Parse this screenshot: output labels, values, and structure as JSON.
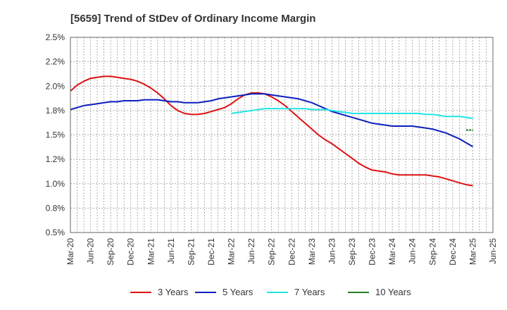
{
  "chart_data": {
    "type": "line",
    "title": "[5659]  Trend of StDev of Ordinary Income Margin",
    "xlabel": "",
    "ylabel": "",
    "x_ticks": [
      "Mar-20",
      "Jun-20",
      "Sep-20",
      "Dec-20",
      "Mar-21",
      "Jun-21",
      "Sep-21",
      "Dec-21",
      "Mar-22",
      "Jun-22",
      "Sep-22",
      "Dec-22",
      "Mar-23",
      "Jun-23",
      "Sep-23",
      "Dec-23",
      "Mar-24",
      "Jun-24",
      "Sep-24",
      "Dec-24",
      "Mar-25",
      "Jun-25"
    ],
    "y_ticks": [
      "0.5%",
      "0.8%",
      "1.0%",
      "1.2%",
      "1.5%",
      "1.8%",
      "2.0%",
      "2.2%",
      "2.5%"
    ],
    "ylim": [
      0.5,
      2.5
    ],
    "grid": true,
    "legend_position": "bottom",
    "series": [
      {
        "name": "3 Years",
        "color": "#dd1111",
        "x": [
          "Mar-20",
          "Apr-20",
          "May-20",
          "Jun-20",
          "Jul-20",
          "Aug-20",
          "Sep-20",
          "Oct-20",
          "Nov-20",
          "Dec-20",
          "Jan-21",
          "Feb-21",
          "Mar-21",
          "Apr-21",
          "May-21",
          "Jun-21",
          "Jul-21",
          "Aug-21",
          "Sep-21",
          "Oct-21",
          "Nov-21",
          "Dec-21",
          "Jan-22",
          "Feb-22",
          "Mar-22",
          "Apr-22",
          "May-22",
          "Jun-22",
          "Jul-22",
          "Aug-22",
          "Sep-22",
          "Oct-22",
          "Nov-22",
          "Dec-22",
          "Jan-23",
          "Feb-23",
          "Mar-23",
          "Apr-23",
          "May-23",
          "Jun-23",
          "Jul-23",
          "Aug-23",
          "Sep-23",
          "Oct-23",
          "Nov-23",
          "Dec-23",
          "Jan-24",
          "Feb-24",
          "Mar-24",
          "Apr-24",
          "May-24",
          "Jun-24",
          "Jul-24",
          "Aug-24",
          "Sep-24",
          "Oct-24",
          "Nov-24",
          "Dec-24",
          "Jan-25",
          "Feb-25",
          "Mar-25"
        ],
        "values": [
          1.95,
          2.01,
          2.05,
          2.08,
          2.09,
          2.1,
          2.1,
          2.09,
          2.08,
          2.07,
          2.05,
          2.02,
          1.98,
          1.93,
          1.87,
          1.8,
          1.75,
          1.72,
          1.71,
          1.71,
          1.72,
          1.74,
          1.76,
          1.78,
          1.82,
          1.87,
          1.91,
          1.93,
          1.93,
          1.92,
          1.89,
          1.85,
          1.8,
          1.74,
          1.68,
          1.62,
          1.56,
          1.5,
          1.45,
          1.41,
          1.36,
          1.31,
          1.26,
          1.21,
          1.17,
          1.14,
          1.13,
          1.12,
          1.1,
          1.09,
          1.09,
          1.09,
          1.09,
          1.09,
          1.08,
          1.07,
          1.05,
          1.03,
          1.01,
          0.99,
          0.98
        ]
      },
      {
        "name": "5 Years",
        "color": "#0a1fbf",
        "x": [
          "Mar-20",
          "Apr-20",
          "May-20",
          "Jun-20",
          "Jul-20",
          "Aug-20",
          "Sep-20",
          "Oct-20",
          "Nov-20",
          "Dec-20",
          "Jan-21",
          "Feb-21",
          "Mar-21",
          "Apr-21",
          "May-21",
          "Jun-21",
          "Jul-21",
          "Aug-21",
          "Sep-21",
          "Oct-21",
          "Nov-21",
          "Dec-21",
          "Jan-22",
          "Feb-22",
          "Mar-22",
          "Apr-22",
          "May-22",
          "Jun-22",
          "Jul-22",
          "Aug-22",
          "Sep-22",
          "Oct-22",
          "Nov-22",
          "Dec-22",
          "Jan-23",
          "Feb-23",
          "Mar-23",
          "Apr-23",
          "May-23",
          "Jun-23",
          "Jul-23",
          "Aug-23",
          "Sep-23",
          "Oct-23",
          "Nov-23",
          "Dec-23",
          "Jan-24",
          "Feb-24",
          "Mar-24",
          "Apr-24",
          "May-24",
          "Jun-24",
          "Jul-24",
          "Aug-24",
          "Sep-24",
          "Oct-24",
          "Nov-24",
          "Dec-24",
          "Jan-25",
          "Feb-25",
          "Mar-25"
        ],
        "values": [
          1.76,
          1.78,
          1.8,
          1.81,
          1.82,
          1.83,
          1.84,
          1.84,
          1.85,
          1.85,
          1.85,
          1.86,
          1.86,
          1.86,
          1.85,
          1.84,
          1.84,
          1.83,
          1.83,
          1.83,
          1.84,
          1.85,
          1.87,
          1.88,
          1.89,
          1.9,
          1.91,
          1.92,
          1.92,
          1.92,
          1.91,
          1.9,
          1.89,
          1.88,
          1.87,
          1.85,
          1.83,
          1.8,
          1.77,
          1.74,
          1.72,
          1.7,
          1.68,
          1.66,
          1.64,
          1.62,
          1.61,
          1.6,
          1.59,
          1.59,
          1.59,
          1.59,
          1.58,
          1.57,
          1.56,
          1.54,
          1.52,
          1.49,
          1.46,
          1.42,
          1.38
        ]
      },
      {
        "name": "7 Years",
        "color": "#22e5e5",
        "x": [
          "Mar-22",
          "Apr-22",
          "May-22",
          "Jun-22",
          "Jul-22",
          "Aug-22",
          "Sep-22",
          "Oct-22",
          "Nov-22",
          "Dec-22",
          "Jan-23",
          "Feb-23",
          "Mar-23",
          "Apr-23",
          "May-23",
          "Jun-23",
          "Jul-23",
          "Aug-23",
          "Sep-23",
          "Oct-23",
          "Nov-23",
          "Dec-23",
          "Jan-24",
          "Feb-24",
          "Mar-24",
          "Apr-24",
          "May-24",
          "Jun-24",
          "Jul-24",
          "Aug-24",
          "Sep-24",
          "Oct-24",
          "Nov-24",
          "Dec-24",
          "Jan-25",
          "Feb-25",
          "Mar-25"
        ],
        "values": [
          1.72,
          1.73,
          1.74,
          1.75,
          1.76,
          1.77,
          1.77,
          1.77,
          1.77,
          1.77,
          1.77,
          1.77,
          1.76,
          1.76,
          1.76,
          1.75,
          1.74,
          1.73,
          1.72,
          1.72,
          1.72,
          1.72,
          1.72,
          1.72,
          1.72,
          1.72,
          1.72,
          1.72,
          1.72,
          1.71,
          1.71,
          1.7,
          1.69,
          1.69,
          1.69,
          1.68,
          1.67
        ]
      },
      {
        "name": "10 Years",
        "color": "#2a7d2a",
        "x": [
          "Feb-25",
          "Mar-25"
        ],
        "values": [
          1.55,
          1.55
        ]
      }
    ]
  }
}
